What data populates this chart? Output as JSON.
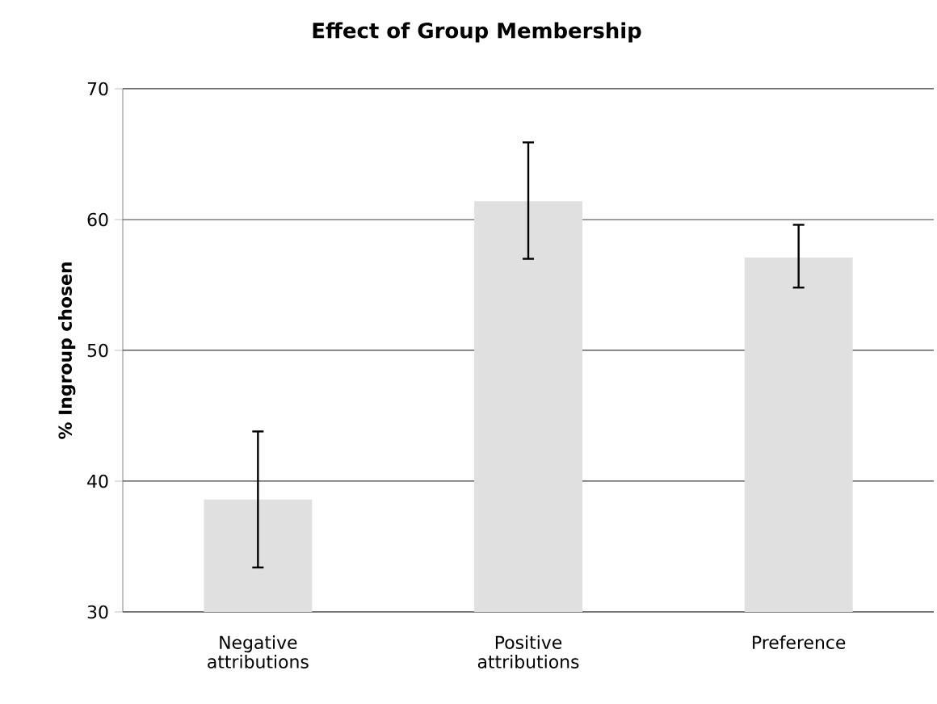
{
  "chart_data": {
    "type": "bar",
    "title": "Effect of Group Membership",
    "ylabel": "% Ingroup chosen",
    "categories": [
      "Negative attributions",
      "Positive attributions",
      "Preference"
    ],
    "values": [
      38.6,
      61.4,
      57.1
    ],
    "color": "#e0e0e0",
    "errors": [
      [
        33.4,
        43.8
      ],
      [
        57.0,
        65.9
      ],
      [
        54.8,
        59.6
      ]
    ],
    "ylim": [
      30,
      70
    ],
    "yticks": [
      30,
      40,
      50,
      60,
      70
    ],
    "grid": "y"
  }
}
